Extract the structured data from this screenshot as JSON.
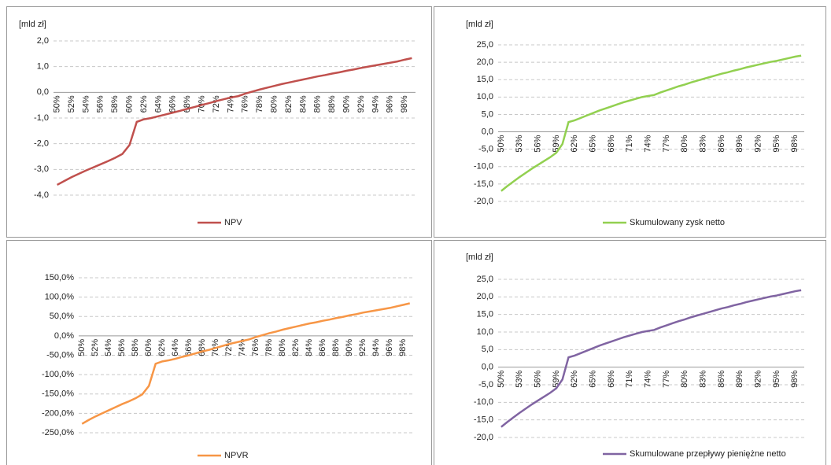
{
  "chart_data": [
    {
      "type": "line",
      "y_label": "[mld zł]",
      "categories": [
        "50%",
        null,
        "52%",
        null,
        "54%",
        null,
        "56%",
        null,
        "58%",
        null,
        "60%",
        null,
        "62%",
        null,
        "64%",
        null,
        "66%",
        null,
        "68%",
        null,
        "70%",
        null,
        "72%",
        null,
        "74%",
        null,
        "76%",
        null,
        "78%",
        null,
        "80%",
        null,
        "82%",
        null,
        "84%",
        null,
        "86%",
        null,
        "88%",
        null,
        "90%",
        null,
        "92%",
        null,
        "94%",
        null,
        "96%",
        null,
        "98%",
        null
      ],
      "series": [
        {
          "name": "NPV",
          "color": "#c0504d",
          "values": [
            -3.6,
            -3.45,
            -3.3,
            -3.17,
            -3.04,
            -2.92,
            -2.8,
            -2.68,
            -2.55,
            -2.4,
            -2.05,
            -1.15,
            -1.05,
            -1.0,
            -0.93,
            -0.86,
            -0.79,
            -0.72,
            -0.64,
            -0.57,
            -0.49,
            -0.42,
            -0.34,
            -0.27,
            -0.2,
            -0.15,
            -0.05,
            0.03,
            0.11,
            0.18,
            0.25,
            0.32,
            0.38,
            0.44,
            0.5,
            0.56,
            0.62,
            0.67,
            0.73,
            0.78,
            0.84,
            0.89,
            0.95,
            1.0,
            1.05,
            1.1,
            1.15,
            1.2,
            1.27,
            1.33
          ]
        }
      ],
      "ylim": [
        -4,
        2
      ],
      "yticks": [
        {
          "value": -4,
          "label": "-4,0"
        },
        {
          "value": -3,
          "label": "-3,0"
        },
        {
          "value": -2,
          "label": "-2,0"
        },
        {
          "value": -1,
          "label": "-1,0"
        },
        {
          "value": 0,
          "label": "0,0"
        },
        {
          "value": 1,
          "label": "1,0"
        },
        {
          "value": 2,
          "label": "2,0"
        }
      ],
      "grid": true,
      "legend": "bottom"
    },
    {
      "type": "line",
      "y_label": "[mld zł]",
      "categories": [
        "50%",
        null,
        null,
        "53%",
        null,
        null,
        "56%",
        null,
        null,
        "59%",
        null,
        null,
        "62%",
        null,
        null,
        "65%",
        null,
        null,
        "68%",
        null,
        null,
        "71%",
        null,
        null,
        "74%",
        null,
        null,
        "77%",
        null,
        null,
        "80%",
        null,
        null,
        "83%",
        null,
        null,
        "86%",
        null,
        null,
        "89%",
        null,
        null,
        "92%",
        null,
        null,
        "95%",
        null,
        null,
        "98%",
        null
      ],
      "series": [
        {
          "name": "Skumulowany zysk netto",
          "color": "#92d050",
          "values": [
            -17,
            -15.6,
            -14.3,
            -13,
            -11.8,
            -10.6,
            -9.5,
            -8.4,
            -7.3,
            -6,
            -3.5,
            2.8,
            3.3,
            4,
            4.7,
            5.4,
            6.1,
            6.7,
            7.3,
            7.9,
            8.5,
            9.0,
            9.5,
            10.0,
            10.3,
            10.6,
            11.3,
            11.9,
            12.5,
            13.1,
            13.6,
            14.2,
            14.7,
            15.2,
            15.7,
            16.2,
            16.7,
            17.1,
            17.6,
            18.0,
            18.5,
            18.9,
            19.3,
            19.7,
            20.1,
            20.4,
            20.8,
            21.2,
            21.6,
            21.9
          ]
        }
      ],
      "ylim": [
        -20,
        25
      ],
      "yticks": [
        {
          "value": -20,
          "label": "-20,0"
        },
        {
          "value": -15,
          "label": "-15,0"
        },
        {
          "value": -10,
          "label": "-10,0"
        },
        {
          "value": -5,
          "label": "-5,0"
        },
        {
          "value": 0,
          "label": "0,0"
        },
        {
          "value": 5,
          "label": "5,0"
        },
        {
          "value": 10,
          "label": "10,0"
        },
        {
          "value": 15,
          "label": "15,0"
        },
        {
          "value": 20,
          "label": "20,0"
        },
        {
          "value": 25,
          "label": "25,0"
        }
      ],
      "grid": true,
      "legend": "bottom"
    },
    {
      "type": "line",
      "categories": [
        "50%",
        null,
        "52%",
        null,
        "54%",
        null,
        "56%",
        null,
        "58%",
        null,
        "60%",
        null,
        "62%",
        null,
        "64%",
        null,
        "66%",
        null,
        "68%",
        null,
        "70%",
        null,
        "72%",
        null,
        "74%",
        null,
        "76%",
        null,
        "78%",
        null,
        "80%",
        null,
        "82%",
        null,
        "84%",
        null,
        "86%",
        null,
        "88%",
        null,
        "90%",
        null,
        "92%",
        null,
        "94%",
        null,
        "96%",
        null,
        "98%",
        null
      ],
      "series": [
        {
          "name": "NPVR",
          "color": "#f79646",
          "values": [
            -227,
            -217,
            -208,
            -200,
            -192,
            -184,
            -176,
            -169,
            -161,
            -151,
            -129,
            -72,
            -66,
            -63,
            -59,
            -54,
            -50,
            -45,
            -40,
            -36,
            -31,
            -26,
            -21,
            -17,
            -13,
            -9,
            -3,
            2,
            7,
            11,
            16,
            20,
            24,
            28,
            32,
            35,
            39,
            42,
            46,
            49,
            53,
            56,
            60,
            63,
            66,
            69,
            72,
            76,
            80,
            84
          ]
        }
      ],
      "ylim": [
        -250,
        150
      ],
      "yticks": [
        {
          "value": -250,
          "label": "-250,0%"
        },
        {
          "value": -200,
          "label": "-200,0%"
        },
        {
          "value": -150,
          "label": "-150,0%"
        },
        {
          "value": -100,
          "label": "-100,0%"
        },
        {
          "value": -50,
          "label": "-50,0%"
        },
        {
          "value": 0,
          "label": "0,0%"
        },
        {
          "value": 50,
          "label": "50,0%"
        },
        {
          "value": 100,
          "label": "100,0%"
        },
        {
          "value": 150,
          "label": "150,0%"
        }
      ],
      "grid": true,
      "legend": "bottom"
    },
    {
      "type": "line",
      "y_label": "[mld zł]",
      "categories": [
        "50%",
        null,
        null,
        "53%",
        null,
        null,
        "56%",
        null,
        null,
        "59%",
        null,
        null,
        "62%",
        null,
        null,
        "65%",
        null,
        null,
        "68%",
        null,
        null,
        "71%",
        null,
        null,
        "74%",
        null,
        null,
        "77%",
        null,
        null,
        "80%",
        null,
        null,
        "83%",
        null,
        null,
        "86%",
        null,
        null,
        "89%",
        null,
        null,
        "92%",
        null,
        null,
        "95%",
        null,
        null,
        "98%",
        null
      ],
      "series": [
        {
          "name": "Skumulowane przepływy pieniężne netto",
          "color": "#8064a2",
          "values": [
            -17,
            -15.6,
            -14.3,
            -13,
            -11.8,
            -10.6,
            -9.5,
            -8.4,
            -7.3,
            -6,
            -3.5,
            2.8,
            3.3,
            4,
            4.7,
            5.4,
            6.1,
            6.7,
            7.3,
            7.9,
            8.5,
            9.0,
            9.5,
            10.0,
            10.3,
            10.6,
            11.3,
            11.9,
            12.5,
            13.1,
            13.6,
            14.2,
            14.7,
            15.2,
            15.7,
            16.2,
            16.7,
            17.1,
            17.6,
            18.0,
            18.5,
            18.9,
            19.3,
            19.7,
            20.1,
            20.4,
            20.8,
            21.2,
            21.6,
            21.9
          ]
        }
      ],
      "ylim": [
        -20,
        25
      ],
      "yticks": [
        {
          "value": -20,
          "label": "-20,0"
        },
        {
          "value": -15,
          "label": "-15,0"
        },
        {
          "value": -10,
          "label": "-10,0"
        },
        {
          "value": -5,
          "label": "-5,0"
        },
        {
          "value": 0,
          "label": "0,0"
        },
        {
          "value": 5,
          "label": "5,0"
        },
        {
          "value": 10,
          "label": "10,0"
        },
        {
          "value": 15,
          "label": "15,0"
        },
        {
          "value": 20,
          "label": "20,0"
        },
        {
          "value": 25,
          "label": "25,0"
        }
      ],
      "grid": true,
      "legend": "bottom"
    }
  ]
}
